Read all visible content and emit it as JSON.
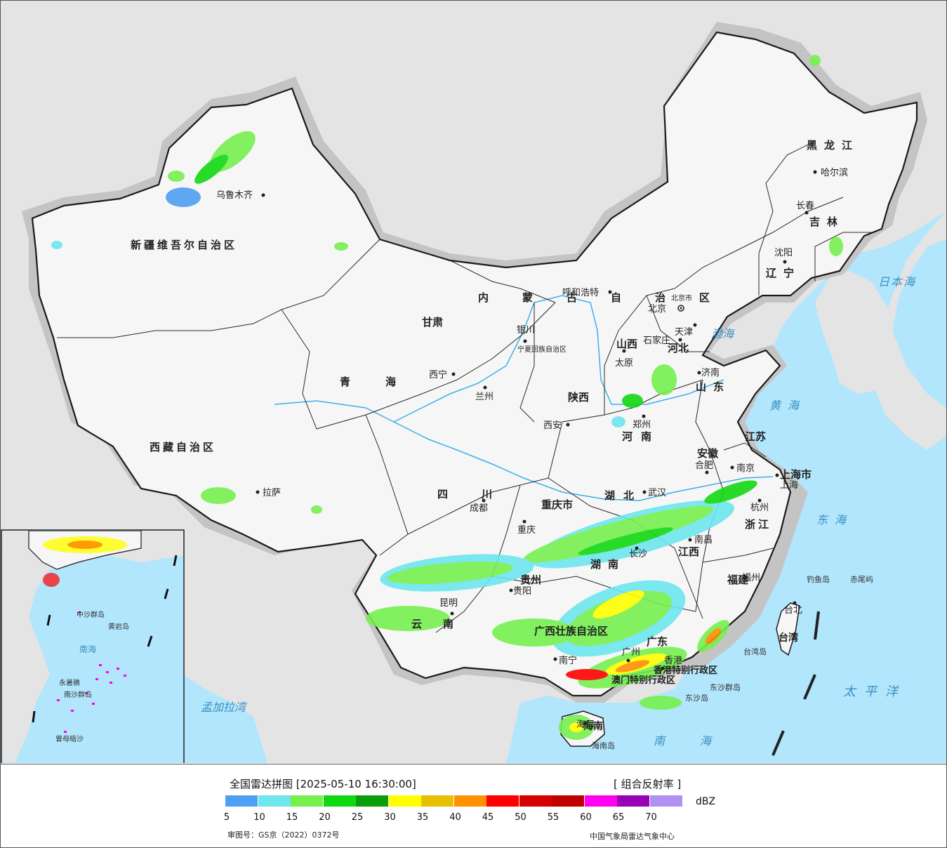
{
  "legend": {
    "title": "全国雷达拼图 [2025-05-10 16:30:00]",
    "product": "[ 组合反射率 ]",
    "unit": "dBZ",
    "approval_no": "审图号：GS京（2022）0372号",
    "source": "中国气象局雷达气象中心",
    "color_scale": [
      {
        "color": "#4f9ff2"
      },
      {
        "color": "#6ee6ee"
      },
      {
        "color": "#76f04e"
      },
      {
        "color": "#12d812"
      },
      {
        "color": "#0a9e0a"
      },
      {
        "color": "#ffff00"
      },
      {
        "color": "#e8c000"
      },
      {
        "color": "#ff9000"
      },
      {
        "color": "#ff0000"
      },
      {
        "color": "#d60000"
      },
      {
        "color": "#c00000"
      },
      {
        "color": "#ff00f0"
      },
      {
        "color": "#9800b4"
      },
      {
        "color": "#b090f0"
      }
    ],
    "ticks": [
      "5",
      "10",
      "15",
      "20",
      "25",
      "30",
      "35",
      "40",
      "45",
      "50",
      "55",
      "60",
      "65",
      "70"
    ]
  },
  "map": {
    "colors": {
      "ocean": "#b2e6fc",
      "neighbor_land": "#e4e4e4",
      "china_land": "#f6f6f6",
      "halo": "#c8c8c8",
      "river": "#3ab0e8"
    },
    "provinces": [
      "新疆维吾尔自治区",
      "西藏自治区",
      "青海",
      "甘肃",
      "内蒙古自治区",
      "黑龙江",
      "吉林",
      "辽宁",
      "河北",
      "山西",
      "山东",
      "河南",
      "陕西",
      "宁夏回族自治区",
      "四川",
      "重庆市",
      "湖北",
      "安徽",
      "江苏",
      "上海市",
      "浙江",
      "江西",
      "湖南",
      "贵州",
      "云南",
      "广西壮族自治区",
      "广东",
      "福建",
      "台湾",
      "海南",
      "香港特别行政区",
      "澳门特别行政区"
    ],
    "cities": [
      "乌鲁木齐",
      "拉萨",
      "西宁",
      "兰州",
      "银川",
      "呼和浩特",
      "北京",
      "天津",
      "石家庄",
      "太原",
      "济南",
      "郑州",
      "西安",
      "成都",
      "重庆",
      "武汉",
      "合肥",
      "南京",
      "上海",
      "杭州",
      "南昌",
      "长沙",
      "福州",
      "台北",
      "贵阳",
      "昆明",
      "南宁",
      "广州",
      "香港",
      "海口",
      "哈尔滨",
      "长春",
      "沈阳",
      "北京市"
    ],
    "seas": [
      "渤海",
      "黄海",
      "东海",
      "南海",
      "太平洋",
      "日本海",
      "孟加拉湾"
    ],
    "islands": [
      "钓鱼岛",
      "赤尾屿",
      "台湾岛",
      "东沙群岛",
      "东沙岛",
      "海南岛"
    ],
    "inset_labels": [
      "中沙群岛",
      "黄岩岛",
      "南海",
      "永暑礁",
      "南沙群岛",
      "曾母暗沙"
    ]
  }
}
